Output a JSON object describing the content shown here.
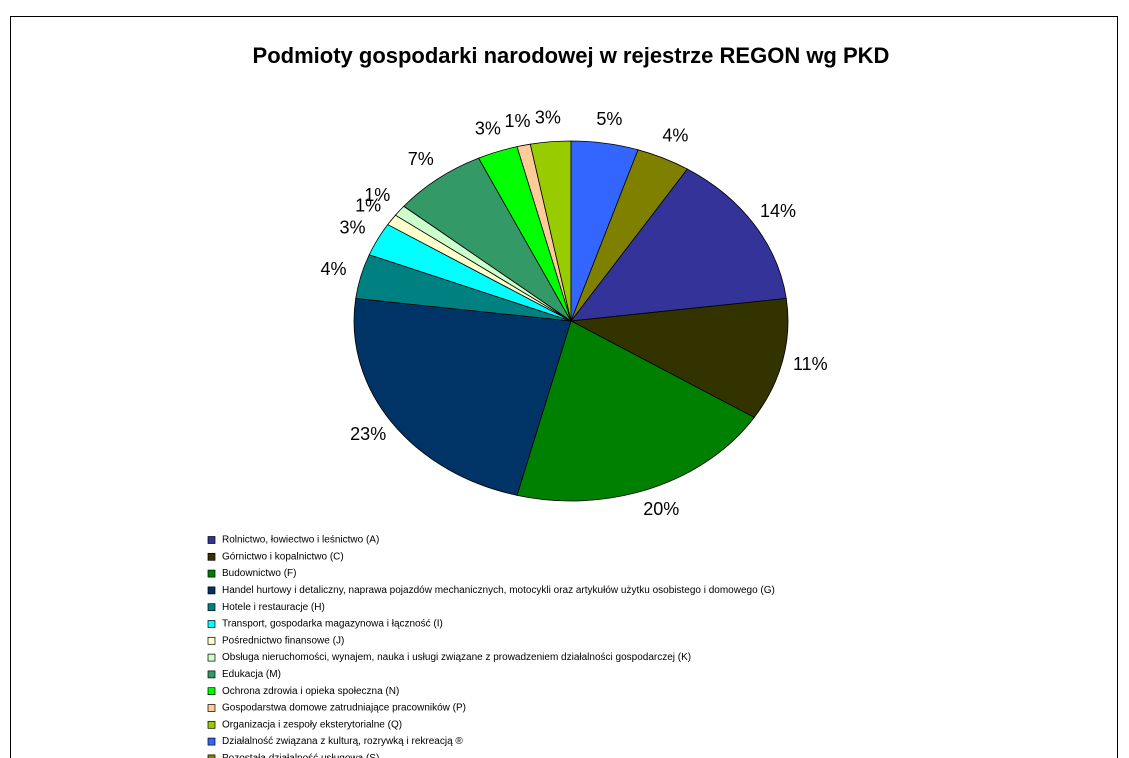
{
  "chart_data": {
    "type": "pie",
    "title": "Podmioty gospodarki narodowej w rejestrze REGON wg PKD",
    "categories": [
      "Rolnictwo, łowiectwo i leśnictwo (A)",
      "Górnictwo i kopalnictwo (C)",
      "Budownictwo (F)",
      "Handel hurtowy i detaliczny, naprawa pojazdów mechanicznych, motocykli oraz artykułów użytku osobistego i domowego (G)",
      "Hotele i restauracje (H)",
      "Transport, gospodarka magazynowa i łączność (I)",
      "Pośrednictwo finansowe (J)",
      "Obsługa nieruchomości, wynajem, nauka i usługi związane z prowadzeniem działalności gospodarczej (K)",
      "Edukacja (M)",
      "Ochrona zdrowia i opieka społeczna (N)",
      "Gospodarstwa domowe zatrudniające pracowników (P)",
      "Organizacja i zespoły eksterytorialne (Q)",
      "Działalność związana z kulturą, rozrywką i rekreacją ®",
      "Pozostała działalność usługowa (S)"
    ],
    "values": [
      14,
      11,
      20,
      23,
      4,
      3,
      1,
      1,
      7,
      3,
      1,
      3,
      5,
      4
    ],
    "value_labels": [
      "14%",
      "11%",
      "20%",
      "23%",
      "4%",
      "3%",
      "1%",
      "1%",
      "7%",
      "3%",
      "1%",
      "3%",
      "5%",
      "4%"
    ],
    "colors": [
      "#333399",
      "#333300",
      "#008000",
      "#003366",
      "#008080",
      "#00ffff",
      "#ffffcc",
      "#ccffcc",
      "#339966",
      "#00ff00",
      "#ffcc99",
      "#99cc00",
      "#3366ff",
      "#808000"
    ],
    "start_angle": 32.4,
    "legend": "bottom"
  }
}
